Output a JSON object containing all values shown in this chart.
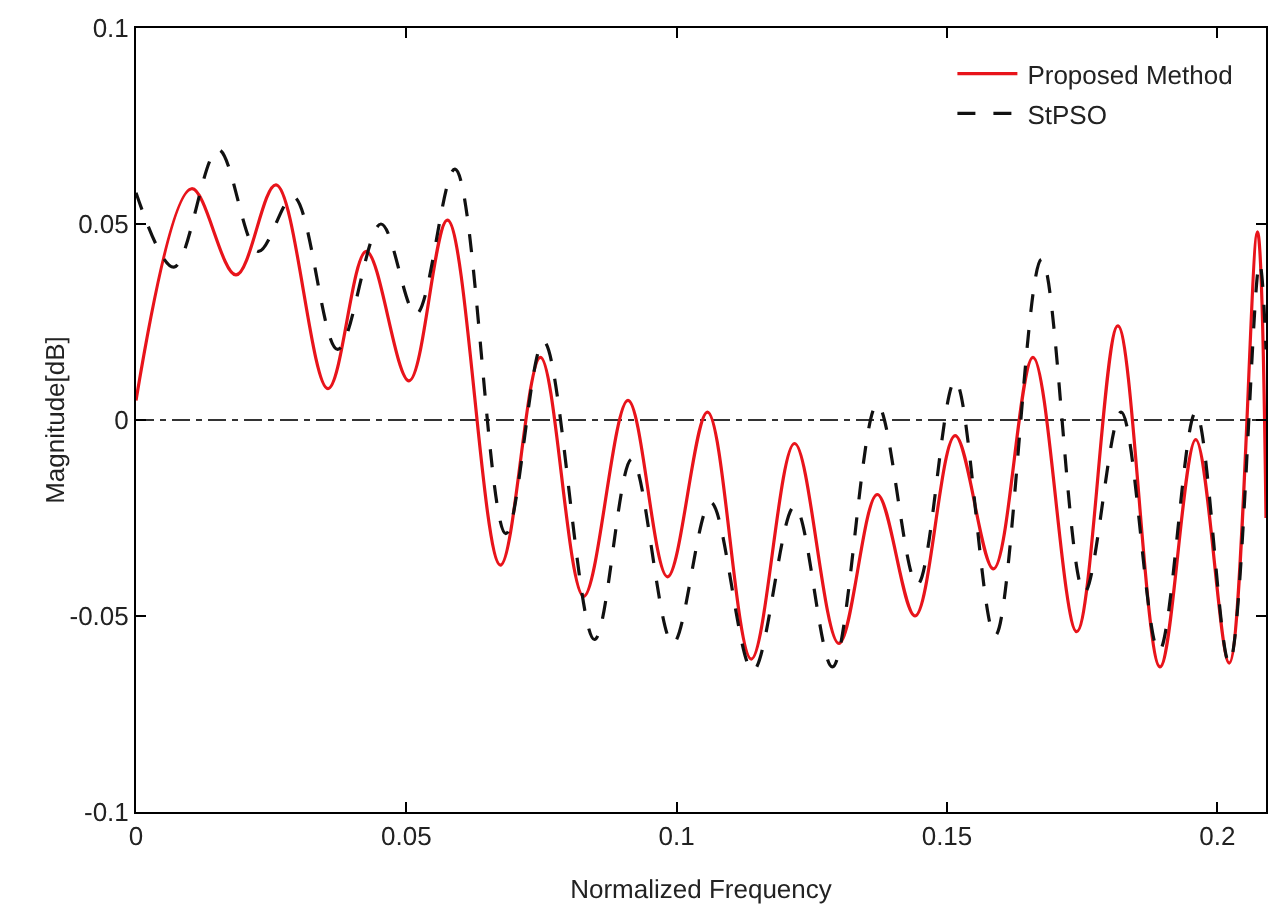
{
  "chart_data": {
    "type": "line",
    "xlabel": "Normalized Frequency",
    "ylabel": "Magnitude[dB]",
    "xlim": [
      0,
      0.209
    ],
    "ylim": [
      -0.1,
      0.1
    ],
    "xticks": [
      0,
      0.05,
      0.1,
      0.15,
      0.2
    ],
    "yticks": [
      -0.1,
      -0.05,
      0,
      0.05,
      0.1
    ],
    "grid": false,
    "legend": "top right",
    "marker": "none",
    "ref_lines": [
      {
        "axis": "y",
        "value": 0,
        "color": "#333333",
        "line_style": "dashdot"
      }
    ],
    "series": [
      {
        "name": "Proposed Method",
        "color": "#e8141b",
        "line_style": "solid",
        "x": [
          0,
          0.0103,
          0.0185,
          0.0259,
          0.0355,
          0.0426,
          0.0505,
          0.0576,
          0.0674,
          0.0748,
          0.0828,
          0.091,
          0.0983,
          0.1057,
          0.1138,
          0.1218,
          0.13,
          0.1371,
          0.1441,
          0.1515,
          0.1586,
          0.1659,
          0.174,
          0.1816,
          0.1894,
          0.196,
          0.2022,
          0.2074,
          0.209
        ],
        "values": [
          0.005,
          0.059,
          0.037,
          0.06,
          0.008,
          0.043,
          0.01,
          0.051,
          -0.037,
          0.016,
          -0.045,
          0.005,
          -0.04,
          0.002,
          -0.061,
          -0.006,
          -0.057,
          -0.019,
          -0.05,
          -0.004,
          -0.038,
          0.016,
          -0.054,
          0.024,
          -0.063,
          -0.005,
          -0.062,
          0.048,
          -0.025
        ]
      },
      {
        "name": "StPSO",
        "color": "#111111",
        "line_style": "dashed",
        "x": [
          0,
          0.007,
          0.0152,
          0.0226,
          0.0291,
          0.0373,
          0.0453,
          0.0518,
          0.059,
          0.0684,
          0.0754,
          0.0848,
          0.0917,
          0.0993,
          0.1063,
          0.1141,
          0.1218,
          0.1288,
          0.1371,
          0.1445,
          0.1515,
          0.1589,
          0.1675,
          0.1754,
          0.1822,
          0.1892,
          0.196,
          0.2022,
          0.2078,
          0.209
        ],
        "values": [
          0.058,
          0.039,
          0.069,
          0.043,
          0.057,
          0.018,
          0.05,
          0.027,
          0.064,
          -0.029,
          0.02,
          -0.056,
          -0.01,
          -0.057,
          -0.021,
          -0.064,
          -0.022,
          -0.063,
          0.004,
          -0.042,
          0.01,
          -0.055,
          0.041,
          -0.044,
          0.002,
          -0.059,
          0.002,
          -0.062,
          0.04,
          0.018
        ]
      }
    ]
  }
}
